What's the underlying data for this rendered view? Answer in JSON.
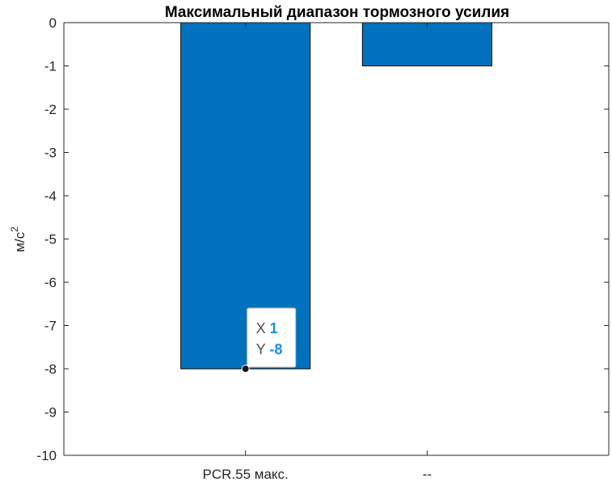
{
  "chart_data": {
    "type": "bar",
    "title": "Максимальный диапазон тормозного усилия",
    "ylabel": "м/с",
    "ylabel_superscript": "2",
    "xlabel": "",
    "categories": [
      "PCR.55 макс.",
      "--"
    ],
    "values": [
      -8,
      -1
    ],
    "ylim": [
      -10,
      0
    ],
    "yticks": [
      0,
      -1,
      -2,
      -3,
      -4,
      -5,
      -6,
      -7,
      -8,
      -9,
      -10
    ],
    "xlim": [
      0,
      3
    ],
    "bar_color": "#0072BD",
    "grid": false,
    "datatip": {
      "x_label": "X",
      "x_value": "1",
      "y_label": "Y",
      "y_value": "-8",
      "point": {
        "x": 1,
        "y": -8
      }
    }
  }
}
